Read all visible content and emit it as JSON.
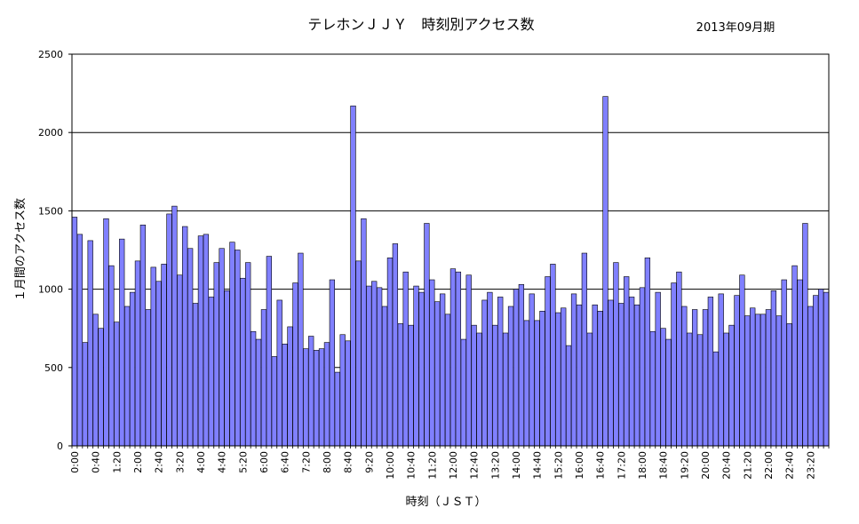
{
  "chart_data": {
    "type": "bar",
    "title": "テレホンＪＪＹ　時刻別アクセス数",
    "subtitle": "2013年09月期",
    "xlabel": "時刻（ＪＳＴ）",
    "ylabel": "１月間のアクセス数",
    "ylim": [
      0,
      2500
    ],
    "yticks": [
      0,
      500,
      1000,
      1500,
      2000,
      2500
    ],
    "grid": true,
    "bar_color": "#8080FF",
    "x_tick_labels": [
      "0:00",
      "0:40",
      "1:20",
      "2:00",
      "2:40",
      "3:20",
      "4:00",
      "4:40",
      "5:20",
      "6:00",
      "6:40",
      "7:20",
      "8:00",
      "8:40",
      "9:20",
      "10:00",
      "10:40",
      "11:20",
      "12:00",
      "12:40",
      "13:20",
      "14:00",
      "14:40",
      "15:20",
      "16:00",
      "16:40",
      "17:20",
      "18:00",
      "18:40",
      "19:20",
      "20:00",
      "20:40",
      "21:20",
      "22:00",
      "22:40",
      "23:20"
    ],
    "interval_minutes": 10,
    "values": [
      1460,
      1350,
      660,
      1310,
      840,
      750,
      1450,
      1150,
      790,
      1320,
      890,
      980,
      1180,
      1410,
      870,
      1140,
      1050,
      1160,
      1480,
      1530,
      1090,
      1400,
      1260,
      910,
      1340,
      1350,
      950,
      1170,
      1260,
      990,
      1300,
      1250,
      1070,
      1170,
      730,
      680,
      870,
      1210,
      570,
      930,
      650,
      760,
      1040,
      1230,
      620,
      700,
      610,
      620,
      660,
      1060,
      470,
      710,
      670,
      2170,
      1180,
      1450,
      1020,
      1050,
      1010,
      890,
      1200,
      1290,
      780,
      1110,
      770,
      1020,
      980,
      1420,
      1060,
      920,
      970,
      840,
      1130,
      1110,
      680,
      1090,
      770,
      720,
      930,
      980,
      770,
      950,
      720,
      890,
      1000,
      1030,
      800,
      970,
      800,
      860,
      1080,
      1160,
      850,
      880,
      640,
      970,
      900,
      1230,
      720,
      900,
      860,
      2230,
      930,
      1170,
      910,
      1080,
      950,
      900,
      1010,
      1200,
      730,
      980,
      750,
      680,
      1040,
      1110,
      890,
      720,
      870,
      710,
      870,
      950,
      600,
      970,
      720,
      770,
      960,
      1090,
      830,
      880,
      840,
      840,
      870,
      990,
      830,
      1060,
      780,
      1150,
      1060,
      1420,
      890,
      960,
      1000,
      980
    ]
  }
}
